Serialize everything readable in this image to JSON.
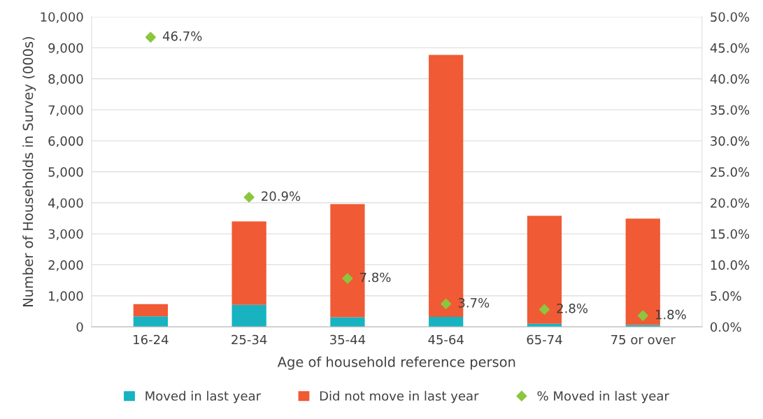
{
  "chart_data": {
    "type": "bar",
    "stacked": true,
    "xlabel": "Age of household reference person",
    "ylabel": "Number of Households in Survey (000s)",
    "categories": [
      "16-24",
      "25-34",
      "35-44",
      "45-64",
      "65-74",
      "75 or over"
    ],
    "series": [
      {
        "name": "Moved in last year",
        "color": "#17b3c1",
        "values": [
          340,
          710,
          310,
          320,
          100,
          60
        ]
      },
      {
        "name": "Did not move in last year",
        "color": "#f05a35",
        "values": [
          390,
          2690,
          3650,
          8450,
          3480,
          3430
        ]
      },
      {
        "name": "% Moved in last year",
        "type": "scatter",
        "axis": "y2",
        "color": "#8cc63f",
        "values": [
          46.7,
          20.9,
          7.8,
          3.7,
          2.8,
          1.8
        ],
        "value_labels": [
          "46.7%",
          "20.9%",
          "7.8%",
          "3.7%",
          "2.8%",
          "1.8%"
        ]
      }
    ],
    "ylim": [
      0,
      10000
    ],
    "yticks": [
      {
        "value": 0,
        "label": "0"
      },
      {
        "value": 1000,
        "label": "1,000"
      },
      {
        "value": 2000,
        "label": "2,000"
      },
      {
        "value": 3000,
        "label": "3,000"
      },
      {
        "value": 4000,
        "label": "4,000"
      },
      {
        "value": 5000,
        "label": "5,000"
      },
      {
        "value": 6000,
        "label": "6,000"
      },
      {
        "value": 7000,
        "label": "7,000"
      },
      {
        "value": 8000,
        "label": "8,000"
      },
      {
        "value": 9000,
        "label": "9,000"
      },
      {
        "value": 10000,
        "label": "10,000"
      }
    ],
    "y2lim": [
      0,
      50
    ],
    "y2ticks": [
      {
        "value": 0,
        "label": "0.0%"
      },
      {
        "value": 5,
        "label": "5.0%"
      },
      {
        "value": 10,
        "label": "10.0%"
      },
      {
        "value": 15,
        "label": "15.0%"
      },
      {
        "value": 20,
        "label": "20.0%"
      },
      {
        "value": 25,
        "label": "25.0%"
      },
      {
        "value": 30,
        "label": "30.0%"
      },
      {
        "value": 35,
        "label": "35.0%"
      },
      {
        "value": 40,
        "label": "40.0%"
      },
      {
        "value": 45,
        "label": "45.0%"
      },
      {
        "value": 50,
        "label": "50.0%"
      }
    ],
    "grid": "y",
    "legend": "bottom",
    "marker": "diamond"
  }
}
